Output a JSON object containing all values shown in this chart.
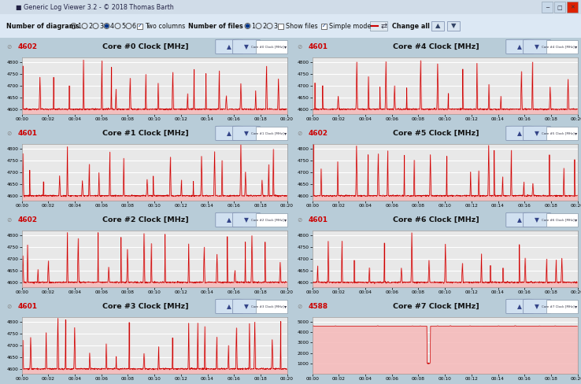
{
  "title_bar": "Generic Log Viewer 3.2 - © 2018 Thomas Barth",
  "cores": [
    {
      "id": 0,
      "label": "Core #0 Clock [MHz]",
      "short": "Core #0 Clock [MHz]",
      "current": 4602,
      "ymin": 4580,
      "ymax": 4820,
      "yticks": [
        4600,
        4650,
        4700,
        4750,
        4800
      ]
    },
    {
      "id": 1,
      "label": "Core #1 Clock [MHz]",
      "short": "Core #1 Clock [MHz]",
      "current": 4601,
      "ymin": 4580,
      "ymax": 4820,
      "yticks": [
        4600,
        4650,
        4700,
        4750,
        4800
      ]
    },
    {
      "id": 2,
      "label": "Core #2 Clock [MHz]",
      "short": "Core #2 Clock [MHz]",
      "current": 4602,
      "ymin": 4580,
      "ymax": 4820,
      "yticks": [
        4600,
        4650,
        4700,
        4750,
        4800
      ]
    },
    {
      "id": 3,
      "label": "Core #3 Clock [MHz]",
      "short": "Core #3 Clock [MHz]",
      "current": 4601,
      "ymin": 4580,
      "ymax": 4820,
      "yticks": [
        4600,
        4650,
        4700,
        4750,
        4800
      ]
    },
    {
      "id": 4,
      "label": "Core #4 Clock [MHz]",
      "short": "Core #4 Clock [MHz]",
      "current": 4601,
      "ymin": 4580,
      "ymax": 4820,
      "yticks": [
        4600,
        4650,
        4700,
        4750,
        4800
      ]
    },
    {
      "id": 5,
      "label": "Core #5 Clock [MHz]",
      "short": "Core #5 Clock [MHz]",
      "current": 4602,
      "ymin": 4580,
      "ymax": 4820,
      "yticks": [
        4600,
        4650,
        4700,
        4750,
        4800
      ]
    },
    {
      "id": 6,
      "label": "Core #6 Clock [MHz]",
      "short": "Core #6 Clock [MHz]",
      "current": 4601,
      "ymin": 4580,
      "ymax": 4820,
      "yticks": [
        4600,
        4650,
        4700,
        4750,
        4800
      ]
    },
    {
      "id": 7,
      "label": "Core #7 Clock [MHz]",
      "short": "Core #7 Clock [MHz]",
      "current": 4588,
      "ymin": 0,
      "ymax": 5500,
      "yticks": [
        1000,
        2000,
        3000,
        4000,
        5000
      ]
    }
  ],
  "xmin": 0,
  "xmax": 1200,
  "xtick_labels": [
    "00:00",
    "00:02",
    "00:04",
    "00:06",
    "00:08",
    "00:10",
    "00:12",
    "00:14",
    "00:16",
    "00:18",
    "00:20"
  ],
  "line_color": "#cc0000",
  "fill_color": "#f5b8b8",
  "plot_bg": "#e8e8e8",
  "window_bg": "#b8ccd8",
  "panel_border": "#a0b0c0",
  "title_bg": "#ccdcec",
  "toolbar_bg": "#dce8f0",
  "header_bg": "#e8f0f8",
  "grid_color": "#ffffff"
}
